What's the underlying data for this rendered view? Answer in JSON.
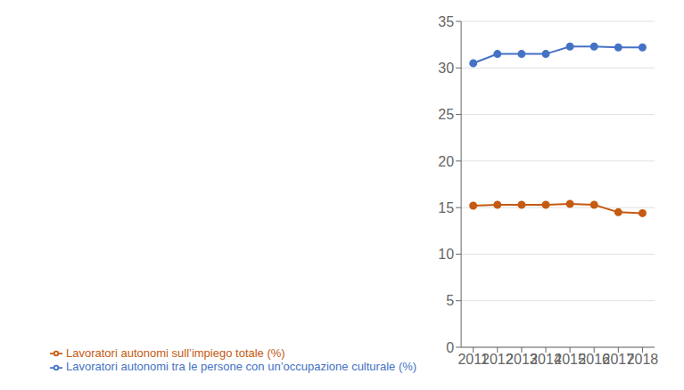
{
  "chart_data": {
    "type": "line",
    "x": [
      2011,
      2012,
      2013,
      2014,
      2015,
      2016,
      2017,
      2018
    ],
    "xlim": [
      2010.5,
      2018.5
    ],
    "xticks": [
      2011,
      2012,
      2013,
      2014,
      2015,
      2016,
      2017,
      2018
    ],
    "ylim": [
      0,
      35
    ],
    "yticks": [
      0,
      5,
      10,
      15,
      20,
      25,
      30,
      35
    ],
    "grid": true,
    "legend": "bottom",
    "series": [
      {
        "name": "Lavoratori autonomi tra le persone con un’occupazione culturale (%)",
        "color": "#4472C4",
        "marker": "circle",
        "values": [
          30.5,
          31.5,
          31.5,
          31.5,
          32.3,
          32.3,
          32.2,
          32.2
        ]
      },
      {
        "name": "Lavoratori autonomi sull’impiego totale (%)",
        "color": "#C55A11",
        "marker": "circle",
        "values": [
          15.2,
          15.3,
          15.3,
          15.3,
          15.4,
          15.3,
          14.5,
          14.4
        ]
      }
    ]
  }
}
